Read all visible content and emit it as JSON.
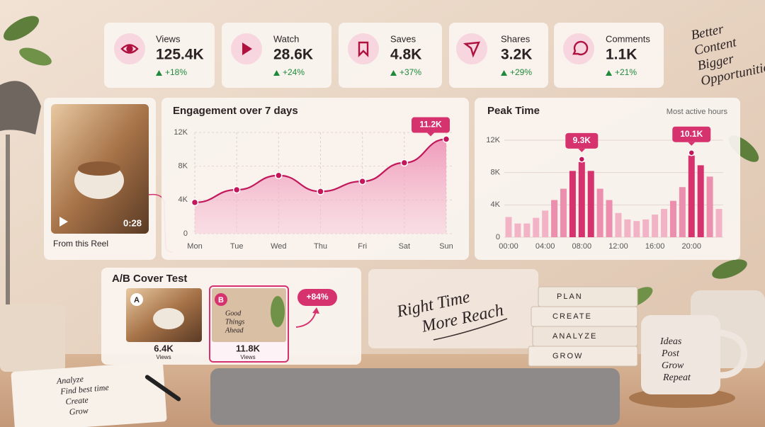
{
  "stats": [
    {
      "label": "Views",
      "value": "125.4K",
      "change": "+18%"
    },
    {
      "label": "Watch",
      "value": "28.6K",
      "change": "+24%"
    },
    {
      "label": "Saves",
      "value": "4.8K",
      "change": "+37%"
    },
    {
      "label": "Shares",
      "value": "3.2K",
      "change": "+29%"
    },
    {
      "label": "Comments",
      "value": "1.1K",
      "change": "+21%"
    }
  ],
  "wall_note": [
    "Better",
    "Content",
    "Bigger",
    "Opportunities"
  ],
  "reel": {
    "duration": "0:28",
    "caption": "From this Reel"
  },
  "chart_data": [
    {
      "type": "line",
      "title": "Engagement over 7 days",
      "categories": [
        "Mon",
        "Tue",
        "Wed",
        "Thu",
        "Fri",
        "Sat",
        "Sun"
      ],
      "values": [
        3700,
        5200,
        6900,
        5000,
        6200,
        8400,
        11200
      ],
      "value_labels": [
        null,
        null,
        null,
        null,
        null,
        null,
        "11.2K"
      ],
      "color": "#c2185b",
      "ylim": [
        0,
        12000
      ],
      "yticks": [
        0,
        {
          "value": 4000,
          "label": "4K"
        },
        {
          "value": 8000,
          "label": "8K"
        },
        {
          "value": 12000,
          "label": "12K"
        }
      ],
      "grid": true
    },
    {
      "type": "bar",
      "title": "Peak Time",
      "subtitle": "Most active hours",
      "categories": [
        "00:00",
        null,
        null,
        null,
        "04:00",
        null,
        null,
        null,
        "08:00",
        null,
        null,
        null,
        "12:00",
        null,
        null,
        null,
        "16:00",
        null,
        null,
        null,
        "20:00",
        null,
        null,
        null
      ],
      "values": [
        2500,
        1700,
        1700,
        2400,
        3300,
        4600,
        6000,
        8200,
        9300,
        8200,
        6000,
        4600,
        3000,
        2200,
        2000,
        2200,
        2800,
        3500,
        4500,
        6200,
        10100,
        8900,
        7500,
        3500
      ],
      "value_labels": [
        null,
        null,
        null,
        null,
        null,
        null,
        null,
        null,
        "9.3K",
        null,
        null,
        null,
        null,
        null,
        null,
        null,
        null,
        null,
        null,
        null,
        "10.1K",
        null,
        null,
        null
      ],
      "colors": [
        "#f3b3c7",
        "#f3b3c7",
        "#f3b3c7",
        "#f3b3c7",
        "#f3b3c7",
        "#ec8fae",
        "#ec8fae",
        "#d6336e",
        "#d6336e",
        "#d6336e",
        "#ec8fae",
        "#ec8fae",
        "#f3b3c7",
        "#f3b3c7",
        "#f3b3c7",
        "#f3b3c7",
        "#f3b3c7",
        "#f3b3c7",
        "#ec8fae",
        "#ec8fae",
        "#d6336e",
        "#d6336e",
        "#ec8fae",
        "#f3b3c7"
      ],
      "ylim": [
        0,
        12000
      ],
      "yticks": [
        0,
        {
          "value": 4000,
          "label": "4K"
        },
        {
          "value": 8000,
          "label": "8K"
        },
        {
          "value": 12000,
          "label": "12K"
        }
      ],
      "grid": true
    }
  ],
  "ab_test": {
    "title": "A/B Cover Test",
    "a": {
      "tag": "A",
      "value": "6.4K",
      "unit": "Views"
    },
    "b": {
      "tag": "B",
      "value": "11.8K",
      "unit": "Views",
      "cover_text": [
        "Good",
        "Things",
        "Ahead"
      ]
    },
    "lift": "+84%"
  },
  "slogan": [
    "Right Time",
    "More Reach"
  ],
  "books": [
    "PLAN",
    "CREATE",
    "ANALYZE",
    "GROW"
  ],
  "mug": [
    "Ideas",
    "Post",
    "Grow",
    "Repeat"
  ],
  "notebook": [
    "Analyze",
    "Find best time",
    "Create",
    "Grow"
  ]
}
